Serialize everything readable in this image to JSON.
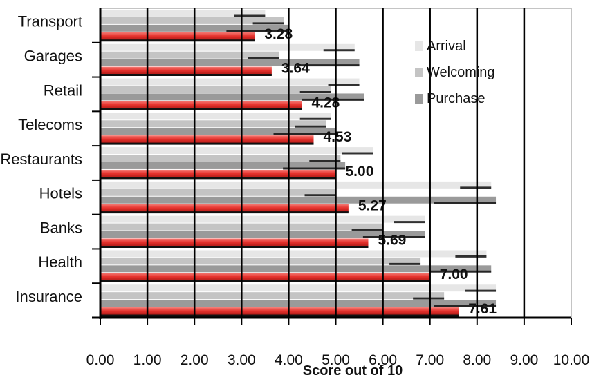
{
  "chart_data": {
    "type": "bar",
    "orientation": "horizontal",
    "categories": [
      "Transport",
      "Garages",
      "Retail",
      "Telecoms",
      "Restaurants",
      "Hotels",
      "Banks",
      "Health",
      "Insurance"
    ],
    "series": [
      {
        "name": "Arrival",
        "values": [
          3.5,
          5.4,
          5.5,
          4.9,
          5.8,
          8.3,
          6.9,
          8.2,
          8.4
        ]
      },
      {
        "name": "Welcoming",
        "values": [
          3.9,
          3.8,
          4.9,
          4.8,
          5.1,
          5.0,
          6.0,
          6.8,
          7.3
        ]
      },
      {
        "name": "Purchase",
        "values": [
          4.0,
          5.5,
          5.6,
          5.0,
          5.2,
          8.4,
          6.9,
          8.3,
          8.4
        ]
      },
      {
        "values": [
          3.28,
          3.64,
          4.28,
          4.53,
          5.0,
          5.27,
          5.69,
          7.0,
          7.61
        ]
      }
    ],
    "value_labels": [
      "3.28",
      "3.64",
      "4.28",
      "4.53",
      "5.00",
      "5.27",
      "5.69",
      "7.00",
      "7.61"
    ],
    "xlabel": "Score out of 10",
    "ylabel": "",
    "xlim": [
      0,
      10
    ],
    "x_ticks": [
      "0.00",
      "1.00",
      "2.00",
      "3.00",
      "4.00",
      "5.00",
      "6.00",
      "7.00",
      "8.00",
      "9.00",
      "10.00"
    ],
    "grid": "vertical",
    "legend": {
      "position": "top-right",
      "entries": [
        "Arrival",
        "Welcoming",
        "Purchase"
      ]
    },
    "colors": {
      "arrival": "#e6e6e6",
      "welcoming": "#c4c4c4",
      "purchase": "#9a9a9a",
      "overall": "#e5322d",
      "grid": "#000000",
      "axis": "#000000"
    }
  }
}
